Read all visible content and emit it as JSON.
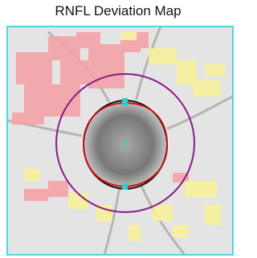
{
  "title": "RNFL Deviation Map"
}
